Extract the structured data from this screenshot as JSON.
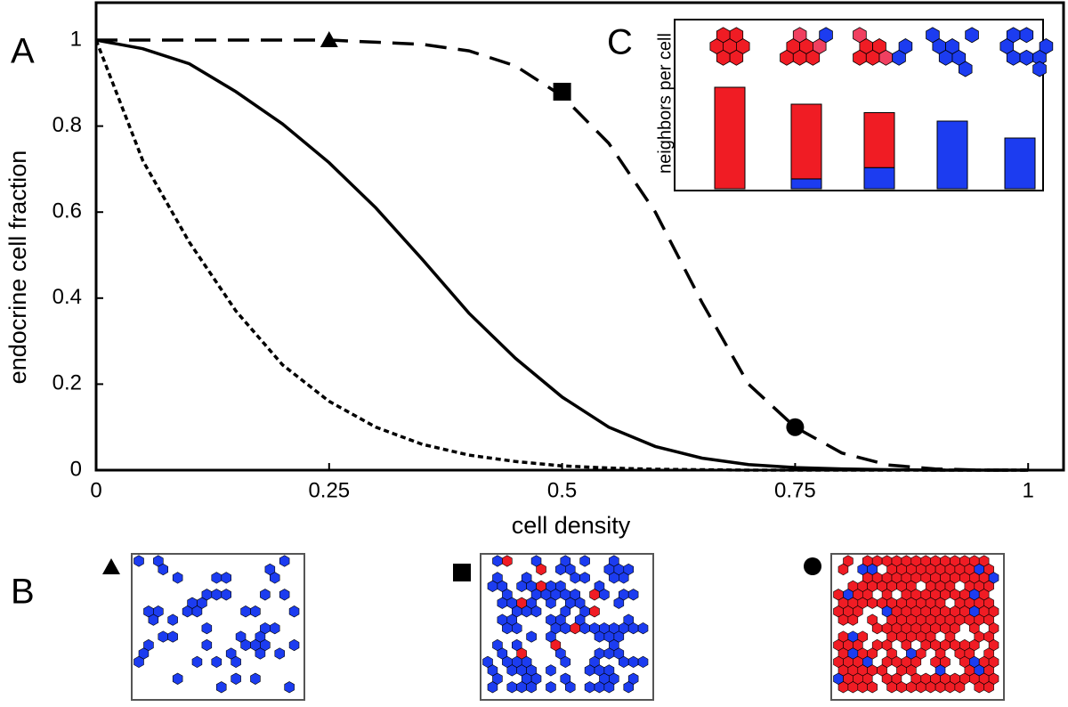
{
  "chart_data": [
    {
      "type": "line",
      "panel_label": "A",
      "x_label": "cell density",
      "y_label": "endocrine cell fraction",
      "x": [
        0,
        0.05,
        0.1,
        0.15,
        0.2,
        0.25,
        0.3,
        0.35,
        0.4,
        0.45,
        0.5,
        0.55,
        0.6,
        0.65,
        0.7,
        0.75,
        0.8,
        0.85,
        0.9,
        0.95,
        1
      ],
      "series": [
        {
          "color": "#000000",
          "dash": "solid",
          "values": [
            1,
            0.98,
            0.945,
            0.88,
            0.805,
            0.715,
            0.61,
            0.49,
            0.365,
            0.26,
            0.17,
            0.1,
            0.055,
            0.028,
            0.013,
            0.006,
            0.003,
            0.001,
            0,
            0,
            0
          ]
        },
        {
          "color": "#000000",
          "dash": "dashed",
          "values": [
            1,
            1,
            1,
            1,
            1,
            1,
            0.995,
            0.99,
            0.975,
            0.94,
            0.87,
            0.76,
            0.6,
            0.39,
            0.2,
            0.1,
            0.04,
            0.012,
            0.003,
            0,
            0
          ]
        },
        {
          "color": "#000000",
          "dash": "dotted",
          "values": [
            1,
            0.72,
            0.53,
            0.37,
            0.245,
            0.16,
            0.1,
            0.06,
            0.035,
            0.02,
            0.01,
            0.005,
            0.002,
            0.001,
            0,
            0,
            0,
            0,
            0,
            0,
            0
          ]
        }
      ],
      "markers": [
        {
          "x": 0.25,
          "y": 1,
          "shape": "triangle"
        },
        {
          "x": 0.5,
          "y": 0.88,
          "shape": "square"
        },
        {
          "x": 0.75,
          "y": 0.1,
          "shape": "circle"
        }
      ],
      "xlim": [
        0,
        1.038
      ],
      "ylim": [
        0,
        1.087
      ],
      "xticks": [
        0,
        0.25,
        0.5,
        0.75,
        1
      ],
      "yticks": [
        0,
        0.2,
        0.4,
        0.6,
        0.8,
        1
      ]
    },
    {
      "type": "bar",
      "stacked": true,
      "panel_label": "C",
      "y_label": "neighbors per cell",
      "categories": [
        null,
        null,
        null,
        null,
        null
      ],
      "series": [
        {
          "color": "#1c3cf0",
          "values": [
            0,
            0.35,
            0.75,
            2.4,
            1.8
          ]
        },
        {
          "color": "#f01c24",
          "values": [
            3.6,
            2.65,
            1.95,
            0,
            0
          ]
        }
      ],
      "ylim": [
        0,
        6
      ]
    }
  ],
  "panel_b": {
    "label": "B"
  }
}
